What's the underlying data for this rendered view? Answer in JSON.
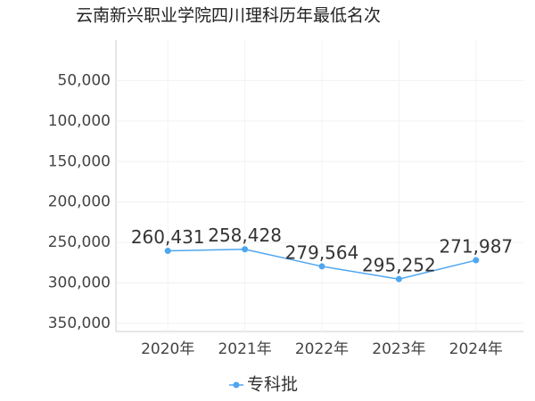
{
  "chart_data": {
    "type": "line",
    "title": "云南新兴职业学院四川理科历年最低名次",
    "categories": [
      "2020年",
      "2021年",
      "2022年",
      "2023年",
      "2024年"
    ],
    "series": [
      {
        "name": "专科批",
        "color": "#4da6f0",
        "values": [
          260431,
          258428,
          279564,
          295252,
          271987
        ],
        "value_labels": [
          "260,431",
          "258,428",
          "279,564",
          "295,252",
          "271,987"
        ]
      }
    ],
    "ylim": [
      0,
      360000
    ],
    "y_inverted": true,
    "yticks": [
      {
        "value": 50000,
        "label": "50,000"
      },
      {
        "value": 100000,
        "label": "100,000"
      },
      {
        "value": 150000,
        "label": "150,000"
      },
      {
        "value": 200000,
        "label": "200,000"
      },
      {
        "value": 250000,
        "label": "250,000"
      },
      {
        "value": 300000,
        "label": "300,000"
      },
      {
        "value": 350000,
        "label": "350,000"
      }
    ],
    "grid": true,
    "legend": "bottom"
  }
}
